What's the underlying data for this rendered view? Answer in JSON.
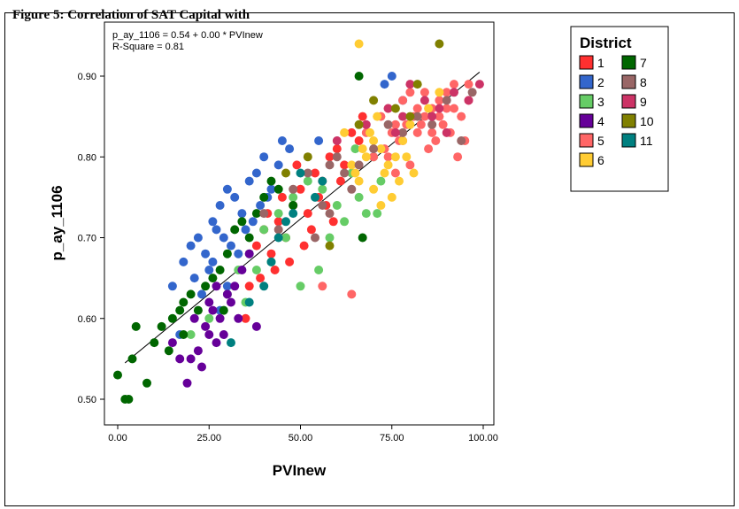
{
  "page": {
    "caption": "Figure 5: Correlation of SAT Capital with"
  },
  "chart_data": {
    "type": "scatter",
    "xlabel": "PVInew",
    "ylabel": "p_ay_1106",
    "xlim": [
      0,
      100
    ],
    "ylim": [
      0.49,
      0.96
    ],
    "x_ticks": [
      "0.00",
      "25.00",
      "50.00",
      "75.00",
      "100.00"
    ],
    "y_ticks": [
      "0.50",
      "0.60",
      "0.70",
      "0.80",
      "0.90"
    ],
    "annotation": [
      "p_ay_1106 = 0.54 + 0.00 * PVInew",
      "R-Square = 0.81"
    ],
    "fit_line": {
      "x": [
        2,
        99
      ],
      "y": [
        0.545,
        0.905
      ]
    },
    "legend": {
      "title": "District",
      "placement": "right",
      "entries": [
        {
          "label": "1",
          "color": "#FF3030"
        },
        {
          "label": "2",
          "color": "#3366CC"
        },
        {
          "label": "3",
          "color": "#66CC66"
        },
        {
          "label": "4",
          "color": "#660099"
        },
        {
          "label": "5",
          "color": "#FF6666"
        },
        {
          "label": "6",
          "color": "#FFCC33"
        },
        {
          "label": "7",
          "color": "#006600"
        },
        {
          "label": "8",
          "color": "#996666"
        },
        {
          "label": "9",
          "color": "#CC3366"
        },
        {
          "label": "10",
          "color": "#808000"
        },
        {
          "label": "11",
          "color": "#008080"
        }
      ]
    },
    "series": [
      {
        "name": "1",
        "color": "#FF3030",
        "points": [
          [
            38,
            0.69
          ],
          [
            40,
            0.71
          ],
          [
            42,
            0.68
          ],
          [
            44,
            0.72
          ],
          [
            46,
            0.7
          ],
          [
            48,
            0.74
          ],
          [
            50,
            0.76
          ],
          [
            52,
            0.73
          ],
          [
            54,
            0.78
          ],
          [
            56,
            0.77
          ],
          [
            58,
            0.8
          ],
          [
            60,
            0.81
          ],
          [
            62,
            0.79
          ],
          [
            64,
            0.83
          ],
          [
            66,
            0.82
          ],
          [
            47,
            0.67
          ],
          [
            43,
            0.66
          ],
          [
            49,
            0.79
          ],
          [
            55,
            0.75
          ],
          [
            41,
            0.73
          ],
          [
            53,
            0.71
          ],
          [
            57,
            0.74
          ],
          [
            61,
            0.77
          ],
          [
            45,
            0.75
          ],
          [
            51,
            0.69
          ],
          [
            39,
            0.65
          ],
          [
            36,
            0.64
          ],
          [
            35,
            0.6
          ],
          [
            67,
            0.85
          ],
          [
            59,
            0.72
          ]
        ]
      },
      {
        "name": "2",
        "color": "#3366CC",
        "points": [
          [
            15,
            0.64
          ],
          [
            18,
            0.67
          ],
          [
            20,
            0.69
          ],
          [
            22,
            0.7
          ],
          [
            24,
            0.68
          ],
          [
            26,
            0.72
          ],
          [
            28,
            0.74
          ],
          [
            30,
            0.76
          ],
          [
            32,
            0.75
          ],
          [
            34,
            0.73
          ],
          [
            36,
            0.77
          ],
          [
            38,
            0.78
          ],
          [
            40,
            0.8
          ],
          [
            45,
            0.82
          ],
          [
            47,
            0.81
          ],
          [
            21,
            0.65
          ],
          [
            25,
            0.66
          ],
          [
            27,
            0.71
          ],
          [
            29,
            0.7
          ],
          [
            31,
            0.69
          ],
          [
            33,
            0.68
          ],
          [
            35,
            0.71
          ],
          [
            37,
            0.72
          ],
          [
            39,
            0.74
          ],
          [
            42,
            0.76
          ],
          [
            44,
            0.79
          ],
          [
            23,
            0.63
          ],
          [
            17,
            0.58
          ],
          [
            75,
            0.9
          ],
          [
            78,
            0.87
          ],
          [
            73,
            0.89
          ],
          [
            55,
            0.82
          ],
          [
            41,
            0.75
          ],
          [
            30,
            0.64
          ],
          [
            26,
            0.67
          ],
          [
            28,
            0.61
          ]
        ]
      },
      {
        "name": "3",
        "color": "#66CC66",
        "points": [
          [
            20,
            0.58
          ],
          [
            25,
            0.6
          ],
          [
            30,
            0.63
          ],
          [
            33,
            0.66
          ],
          [
            36,
            0.68
          ],
          [
            40,
            0.71
          ],
          [
            44,
            0.73
          ],
          [
            48,
            0.75
          ],
          [
            52,
            0.77
          ],
          [
            56,
            0.76
          ],
          [
            60,
            0.74
          ],
          [
            62,
            0.72
          ],
          [
            64,
            0.78
          ],
          [
            66,
            0.75
          ],
          [
            68,
            0.73
          ],
          [
            70,
            0.8
          ],
          [
            72,
            0.77
          ],
          [
            55,
            0.66
          ],
          [
            50,
            0.64
          ],
          [
            46,
            0.7
          ],
          [
            42,
            0.67
          ],
          [
            38,
            0.66
          ],
          [
            58,
            0.7
          ],
          [
            65,
            0.81
          ],
          [
            71,
            0.73
          ],
          [
            35,
            0.62
          ]
        ]
      },
      {
        "name": "4",
        "color": "#660099",
        "points": [
          [
            15,
            0.57
          ],
          [
            17,
            0.55
          ],
          [
            19,
            0.52
          ],
          [
            20,
            0.55
          ],
          [
            22,
            0.56
          ],
          [
            23,
            0.54
          ],
          [
            24,
            0.59
          ],
          [
            25,
            0.62
          ],
          [
            26,
            0.61
          ],
          [
            27,
            0.57
          ],
          [
            28,
            0.6
          ],
          [
            29,
            0.58
          ],
          [
            30,
            0.63
          ],
          [
            31,
            0.62
          ],
          [
            32,
            0.64
          ],
          [
            33,
            0.6
          ],
          [
            34,
            0.66
          ],
          [
            36,
            0.68
          ],
          [
            38,
            0.59
          ],
          [
            21,
            0.6
          ],
          [
            25,
            0.58
          ],
          [
            27,
            0.64
          ]
        ]
      },
      {
        "name": "5",
        "color": "#FF6666",
        "points": [
          [
            56,
            0.64
          ],
          [
            64,
            0.63
          ],
          [
            68,
            0.83
          ],
          [
            72,
            0.85
          ],
          [
            74,
            0.86
          ],
          [
            76,
            0.84
          ],
          [
            78,
            0.87
          ],
          [
            80,
            0.88
          ],
          [
            82,
            0.86
          ],
          [
            84,
            0.85
          ],
          [
            86,
            0.83
          ],
          [
            88,
            0.87
          ],
          [
            90,
            0.88
          ],
          [
            92,
            0.86
          ],
          [
            94,
            0.85
          ],
          [
            96,
            0.87
          ],
          [
            70,
            0.8
          ],
          [
            73,
            0.81
          ],
          [
            75,
            0.83
          ],
          [
            77,
            0.82
          ],
          [
            79,
            0.84
          ],
          [
            81,
            0.85
          ],
          [
            83,
            0.84
          ],
          [
            85,
            0.81
          ],
          [
            87,
            0.82
          ],
          [
            89,
            0.84
          ],
          [
            91,
            0.83
          ],
          [
            93,
            0.8
          ],
          [
            95,
            0.82
          ],
          [
            80,
            0.79
          ],
          [
            76,
            0.78
          ],
          [
            84,
            0.88
          ],
          [
            88,
            0.85
          ],
          [
            92,
            0.89
          ],
          [
            86,
            0.86
          ],
          [
            78,
            0.82
          ],
          [
            82,
            0.83
          ],
          [
            90,
            0.86
          ],
          [
            74,
            0.8
          ],
          [
            96,
            0.89
          ]
        ]
      },
      {
        "name": "6",
        "color": "#FFCC33",
        "points": [
          [
            66,
            0.94
          ],
          [
            62,
            0.83
          ],
          [
            64,
            0.79
          ],
          [
            66,
            0.77
          ],
          [
            68,
            0.8
          ],
          [
            70,
            0.82
          ],
          [
            72,
            0.81
          ],
          [
            74,
            0.79
          ],
          [
            76,
            0.8
          ],
          [
            78,
            0.82
          ],
          [
            80,
            0.84
          ],
          [
            70,
            0.76
          ],
          [
            73,
            0.78
          ],
          [
            75,
            0.75
          ],
          [
            77,
            0.77
          ],
          [
            79,
            0.8
          ],
          [
            81,
            0.78
          ],
          [
            69,
            0.83
          ],
          [
            71,
            0.85
          ],
          [
            67,
            0.81
          ],
          [
            85,
            0.86
          ],
          [
            88,
            0.88
          ],
          [
            65,
            0.78
          ],
          [
            72,
            0.74
          ]
        ]
      },
      {
        "name": "7",
        "color": "#006600",
        "points": [
          [
            0,
            0.53
          ],
          [
            2,
            0.5
          ],
          [
            3,
            0.5
          ],
          [
            4,
            0.55
          ],
          [
            5,
            0.59
          ],
          [
            8,
            0.52
          ],
          [
            10,
            0.57
          ],
          [
            12,
            0.59
          ],
          [
            15,
            0.6
          ],
          [
            18,
            0.62
          ],
          [
            20,
            0.63
          ],
          [
            22,
            0.61
          ],
          [
            24,
            0.64
          ],
          [
            26,
            0.65
          ],
          [
            28,
            0.66
          ],
          [
            30,
            0.68
          ],
          [
            32,
            0.71
          ],
          [
            34,
            0.72
          ],
          [
            36,
            0.7
          ],
          [
            38,
            0.73
          ],
          [
            40,
            0.75
          ],
          [
            42,
            0.77
          ],
          [
            44,
            0.76
          ],
          [
            48,
            0.74
          ],
          [
            18,
            0.58
          ],
          [
            17,
            0.61
          ],
          [
            66,
            0.9
          ],
          [
            67,
            0.7
          ],
          [
            14,
            0.56
          ],
          [
            29,
            0.61
          ]
        ]
      },
      {
        "name": "8",
        "color": "#996666",
        "points": [
          [
            40,
            0.73
          ],
          [
            44,
            0.71
          ],
          [
            48,
            0.76
          ],
          [
            52,
            0.78
          ],
          [
            56,
            0.74
          ],
          [
            58,
            0.79
          ],
          [
            60,
            0.8
          ],
          [
            62,
            0.78
          ],
          [
            64,
            0.76
          ],
          [
            66,
            0.79
          ],
          [
            70,
            0.81
          ],
          [
            74,
            0.84
          ],
          [
            78,
            0.83
          ],
          [
            82,
            0.85
          ],
          [
            86,
            0.84
          ],
          [
            90,
            0.87
          ],
          [
            94,
            0.82
          ],
          [
            97,
            0.88
          ],
          [
            54,
            0.7
          ],
          [
            58,
            0.73
          ]
        ]
      },
      {
        "name": "9",
        "color": "#CC3366",
        "points": [
          [
            60,
            0.82
          ],
          [
            68,
            0.84
          ],
          [
            74,
            0.86
          ],
          [
            78,
            0.85
          ],
          [
            80,
            0.89
          ],
          [
            84,
            0.87
          ],
          [
            88,
            0.86
          ],
          [
            92,
            0.88
          ],
          [
            96,
            0.87
          ],
          [
            99,
            0.89
          ],
          [
            76,
            0.83
          ],
          [
            86,
            0.85
          ],
          [
            90,
            0.83
          ]
        ]
      },
      {
        "name": "10",
        "color": "#808000",
        "points": [
          [
            88,
            0.94
          ],
          [
            82,
            0.89
          ],
          [
            80,
            0.85
          ],
          [
            76,
            0.86
          ],
          [
            70,
            0.87
          ],
          [
            66,
            0.84
          ],
          [
            46,
            0.78
          ],
          [
            52,
            0.8
          ],
          [
            58,
            0.69
          ]
        ]
      },
      {
        "name": "11",
        "color": "#008080",
        "points": [
          [
            31,
            0.57
          ],
          [
            36,
            0.62
          ],
          [
            40,
            0.64
          ],
          [
            42,
            0.67
          ],
          [
            44,
            0.7
          ],
          [
            46,
            0.72
          ],
          [
            48,
            0.73
          ],
          [
            50,
            0.78
          ],
          [
            54,
            0.75
          ],
          [
            56,
            0.77
          ]
        ]
      }
    ]
  }
}
